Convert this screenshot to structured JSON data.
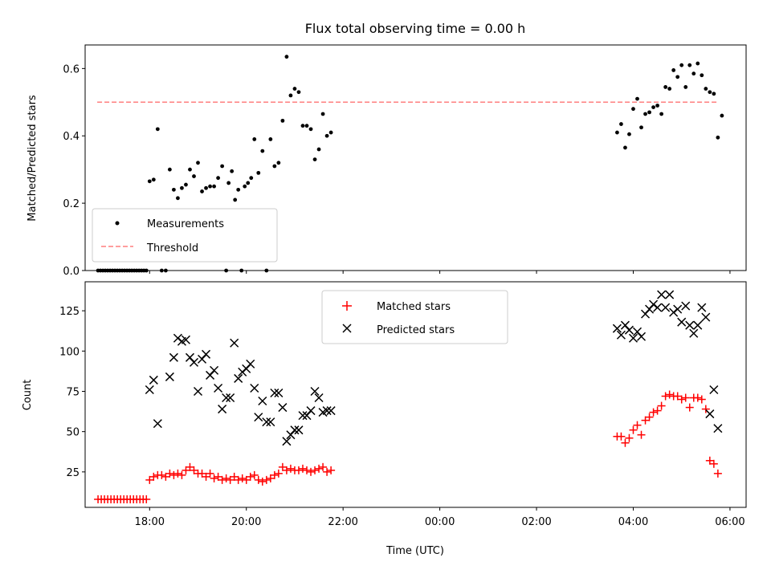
{
  "chart_data": [
    {
      "type": "scatter",
      "title": "Flux total observing time = 0.00 h",
      "xlabel": "",
      "ylabel": "Matched/Predicted stars",
      "xlim": [
        "16:40",
        "06:20"
      ],
      "ylim": [
        0,
        0.67
      ],
      "yticks": [
        "0.0",
        "0.2",
        "0.4",
        "0.6"
      ],
      "ytick_values": [
        0,
        0.2,
        0.4,
        0.6
      ],
      "legend": {
        "placement": "lower-left",
        "entries": [
          "Measurements",
          "Threshold"
        ]
      },
      "threshold": {
        "name": "Threshold",
        "value": 0.5,
        "x_start": "16:55",
        "x_end": "05:45",
        "color": "#ff7f7f"
      },
      "series": [
        {
          "name": "Measurements",
          "color": "#000000",
          "points": [
            [
              "16:56",
              0.0
            ],
            [
              "16:59",
              0.0
            ],
            [
              "17:02",
              0.0
            ],
            [
              "17:05",
              0.0
            ],
            [
              "17:08",
              0.0
            ],
            [
              "17:11",
              0.0
            ],
            [
              "17:14",
              0.0
            ],
            [
              "17:17",
              0.0
            ],
            [
              "17:20",
              0.0
            ],
            [
              "17:23",
              0.0
            ],
            [
              "17:26",
              0.0
            ],
            [
              "17:29",
              0.0
            ],
            [
              "17:32",
              0.0
            ],
            [
              "17:35",
              0.0
            ],
            [
              "17:38",
              0.0
            ],
            [
              "17:41",
              0.0
            ],
            [
              "17:44",
              0.0
            ],
            [
              "17:47",
              0.0
            ],
            [
              "17:50",
              0.0
            ],
            [
              "17:53",
              0.0
            ],
            [
              "17:56",
              0.0
            ],
            [
              "18:00",
              0.265
            ],
            [
              "18:05",
              0.27
            ],
            [
              "18:10",
              0.42
            ],
            [
              "18:15",
              0.0
            ],
            [
              "18:20",
              0.0
            ],
            [
              "18:25",
              0.3
            ],
            [
              "18:30",
              0.24
            ],
            [
              "18:35",
              0.215
            ],
            [
              "18:40",
              0.245
            ],
            [
              "18:45",
              0.255
            ],
            [
              "18:50",
              0.3
            ],
            [
              "18:55",
              0.28
            ],
            [
              "19:00",
              0.32
            ],
            [
              "19:05",
              0.235
            ],
            [
              "19:10",
              0.245
            ],
            [
              "19:15",
              0.25
            ],
            [
              "19:20",
              0.25
            ],
            [
              "19:25",
              0.275
            ],
            [
              "19:30",
              0.31
            ],
            [
              "19:35",
              0.0
            ],
            [
              "19:38",
              0.26
            ],
            [
              "19:42",
              0.295
            ],
            [
              "19:46",
              0.21
            ],
            [
              "19:50",
              0.24
            ],
            [
              "19:54",
              0.0
            ],
            [
              "19:58",
              0.25
            ],
            [
              "20:02",
              0.26
            ],
            [
              "20:06",
              0.275
            ],
            [
              "20:10",
              0.39
            ],
            [
              "20:15",
              0.29
            ],
            [
              "20:20",
              0.355
            ],
            [
              "20:25",
              0.0
            ],
            [
              "20:30",
              0.39
            ],
            [
              "20:35",
              0.31
            ],
            [
              "20:40",
              0.32
            ],
            [
              "20:45",
              0.445
            ],
            [
              "20:50",
              0.635
            ],
            [
              "20:55",
              0.52
            ],
            [
              "21:00",
              0.54
            ],
            [
              "21:05",
              0.53
            ],
            [
              "21:10",
              0.43
            ],
            [
              "21:15",
              0.43
            ],
            [
              "21:20",
              0.42
            ],
            [
              "21:25",
              0.33
            ],
            [
              "21:30",
              0.36
            ],
            [
              "21:35",
              0.465
            ],
            [
              "21:40",
              0.4
            ],
            [
              "21:45",
              0.41
            ],
            [
              "03:40",
              0.41
            ],
            [
              "03:45",
              0.435
            ],
            [
              "03:50",
              0.365
            ],
            [
              "03:55",
              0.405
            ],
            [
              "04:00",
              0.48
            ],
            [
              "04:05",
              0.51
            ],
            [
              "04:10",
              0.425
            ],
            [
              "04:15",
              0.465
            ],
            [
              "04:20",
              0.47
            ],
            [
              "04:25",
              0.485
            ],
            [
              "04:30",
              0.49
            ],
            [
              "04:35",
              0.465
            ],
            [
              "04:40",
              0.545
            ],
            [
              "04:45",
              0.54
            ],
            [
              "04:50",
              0.595
            ],
            [
              "04:55",
              0.575
            ],
            [
              "05:00",
              0.61
            ],
            [
              "05:05",
              0.545
            ],
            [
              "05:10",
              0.61
            ],
            [
              "05:15",
              0.585
            ],
            [
              "05:20",
              0.615
            ],
            [
              "05:25",
              0.58
            ],
            [
              "05:30",
              0.54
            ],
            [
              "05:35",
              0.53
            ],
            [
              "05:40",
              0.525
            ],
            [
              "05:45",
              0.395
            ],
            [
              "05:50",
              0.46
            ]
          ]
        }
      ]
    },
    {
      "type": "scatter",
      "title": "",
      "xlabel": "Time (UTC)",
      "ylabel": "Count",
      "xlim": [
        "16:40",
        "06:20"
      ],
      "ylim": [
        3,
        143
      ],
      "yticks": [
        "25",
        "50",
        "75",
        "100",
        "125"
      ],
      "ytick_values": [
        25,
        50,
        75,
        100,
        125
      ],
      "xticks": [
        "18:00",
        "20:00",
        "22:00",
        "00:00",
        "02:00",
        "04:00",
        "06:00"
      ],
      "legend": {
        "placement": "upper-center",
        "entries": [
          "Matched stars",
          "Predicted stars"
        ]
      },
      "series": [
        {
          "name": "Matched stars",
          "marker": "plus",
          "color": "#ff0000",
          "points": [
            [
              "16:56",
              8
            ],
            [
              "17:00",
              8
            ],
            [
              "17:04",
              8
            ],
            [
              "17:08",
              8
            ],
            [
              "17:12",
              8
            ],
            [
              "17:16",
              8
            ],
            [
              "17:20",
              8
            ],
            [
              "17:24",
              8
            ],
            [
              "17:28",
              8
            ],
            [
              "17:32",
              8
            ],
            [
              "17:36",
              8
            ],
            [
              "17:40",
              8
            ],
            [
              "17:44",
              8
            ],
            [
              "17:48",
              8
            ],
            [
              "17:52",
              8
            ],
            [
              "17:56",
              8
            ],
            [
              "18:00",
              20
            ],
            [
              "18:05",
              22
            ],
            [
              "18:10",
              23
            ],
            [
              "18:15",
              23
            ],
            [
              "18:20",
              22
            ],
            [
              "18:25",
              24
            ],
            [
              "18:30",
              23
            ],
            [
              "18:35",
              24
            ],
            [
              "18:40",
              23
            ],
            [
              "18:45",
              26
            ],
            [
              "18:50",
              28
            ],
            [
              "18:55",
              26
            ],
            [
              "19:00",
              24
            ],
            [
              "19:05",
              24
            ],
            [
              "19:10",
              22
            ],
            [
              "19:15",
              24
            ],
            [
              "19:20",
              21
            ],
            [
              "19:25",
              22
            ],
            [
              "19:30",
              20
            ],
            [
              "19:35",
              21
            ],
            [
              "19:40",
              20
            ],
            [
              "19:45",
              22
            ],
            [
              "19:50",
              20
            ],
            [
              "19:55",
              21
            ],
            [
              "20:00",
              20
            ],
            [
              "20:05",
              22
            ],
            [
              "20:10",
              23
            ],
            [
              "20:15",
              20
            ],
            [
              "20:20",
              19
            ],
            [
              "20:25",
              20
            ],
            [
              "20:30",
              21
            ],
            [
              "20:35",
              23
            ],
            [
              "20:40",
              24
            ],
            [
              "20:45",
              28
            ],
            [
              "20:50",
              26
            ],
            [
              "20:55",
              27
            ],
            [
              "21:00",
              26
            ],
            [
              "21:05",
              26
            ],
            [
              "21:10",
              27
            ],
            [
              "21:15",
              26
            ],
            [
              "21:20",
              25
            ],
            [
              "21:25",
              26
            ],
            [
              "21:30",
              27
            ],
            [
              "21:35",
              28
            ],
            [
              "21:40",
              25
            ],
            [
              "21:45",
              26
            ],
            [
              "03:40",
              47
            ],
            [
              "03:45",
              47
            ],
            [
              "03:50",
              43
            ],
            [
              "03:55",
              46
            ],
            [
              "04:00",
              51
            ],
            [
              "04:05",
              54
            ],
            [
              "04:10",
              48
            ],
            [
              "04:15",
              57
            ],
            [
              "04:20",
              59
            ],
            [
              "04:25",
              62
            ],
            [
              "04:30",
              63
            ],
            [
              "04:35",
              66
            ],
            [
              "04:40",
              72
            ],
            [
              "04:45",
              73
            ],
            [
              "04:50",
              72
            ],
            [
              "04:55",
              72
            ],
            [
              "05:00",
              70
            ],
            [
              "05:05",
              71
            ],
            [
              "05:10",
              65
            ],
            [
              "05:15",
              71
            ],
            [
              "05:20",
              71
            ],
            [
              "05:25",
              70
            ],
            [
              "05:30",
              64
            ],
            [
              "05:35",
              32
            ],
            [
              "05:40",
              30
            ],
            [
              "05:45",
              24
            ]
          ]
        },
        {
          "name": "Predicted stars",
          "marker": "x",
          "color": "#000000",
          "points": [
            [
              "18:00",
              76
            ],
            [
              "18:05",
              82
            ],
            [
              "18:10",
              55
            ],
            [
              "18:25",
              84
            ],
            [
              "18:30",
              96
            ],
            [
              "18:35",
              108
            ],
            [
              "18:40",
              106
            ],
            [
              "18:45",
              107
            ],
            [
              "18:50",
              96
            ],
            [
              "18:55",
              93
            ],
            [
              "19:00",
              75
            ],
            [
              "19:05",
              95
            ],
            [
              "19:10",
              98
            ],
            [
              "19:15",
              85
            ],
            [
              "19:20",
              88
            ],
            [
              "19:25",
              77
            ],
            [
              "19:30",
              64
            ],
            [
              "19:35",
              71
            ],
            [
              "19:40",
              71
            ],
            [
              "19:45",
              105
            ],
            [
              "19:50",
              83
            ],
            [
              "19:55",
              87
            ],
            [
              "20:00",
              89
            ],
            [
              "20:05",
              92
            ],
            [
              "20:10",
              77
            ],
            [
              "20:15",
              59
            ],
            [
              "20:20",
              69
            ],
            [
              "20:25",
              56
            ],
            [
              "20:30",
              56
            ],
            [
              "20:35",
              74
            ],
            [
              "20:40",
              74
            ],
            [
              "20:45",
              65
            ],
            [
              "20:50",
              44
            ],
            [
              "20:55",
              48
            ],
            [
              "21:00",
              51
            ],
            [
              "21:05",
              51
            ],
            [
              "21:10",
              60
            ],
            [
              "21:15",
              60
            ],
            [
              "21:20",
              63
            ],
            [
              "21:25",
              75
            ],
            [
              "21:30",
              71
            ],
            [
              "21:35",
              62
            ],
            [
              "21:40",
              63
            ],
            [
              "21:45",
              63
            ],
            [
              "03:40",
              114
            ],
            [
              "03:45",
              110
            ],
            [
              "03:50",
              116
            ],
            [
              "03:55",
              113
            ],
            [
              "04:00",
              108
            ],
            [
              "04:05",
              112
            ],
            [
              "04:10",
              109
            ],
            [
              "04:15",
              123
            ],
            [
              "04:20",
              126
            ],
            [
              "04:25",
              129
            ],
            [
              "04:30",
              127
            ],
            [
              "04:35",
              135
            ],
            [
              "04:40",
              127
            ],
            [
              "04:45",
              135
            ],
            [
              "04:50",
              124
            ],
            [
              "04:55",
              126
            ],
            [
              "05:00",
              118
            ],
            [
              "05:05",
              128
            ],
            [
              "05:10",
              116
            ],
            [
              "05:15",
              111
            ],
            [
              "05:20",
              116
            ],
            [
              "05:25",
              127
            ],
            [
              "05:30",
              121
            ],
            [
              "05:35",
              61
            ],
            [
              "05:40",
              76
            ],
            [
              "05:45",
              52
            ]
          ]
        }
      ]
    }
  ]
}
